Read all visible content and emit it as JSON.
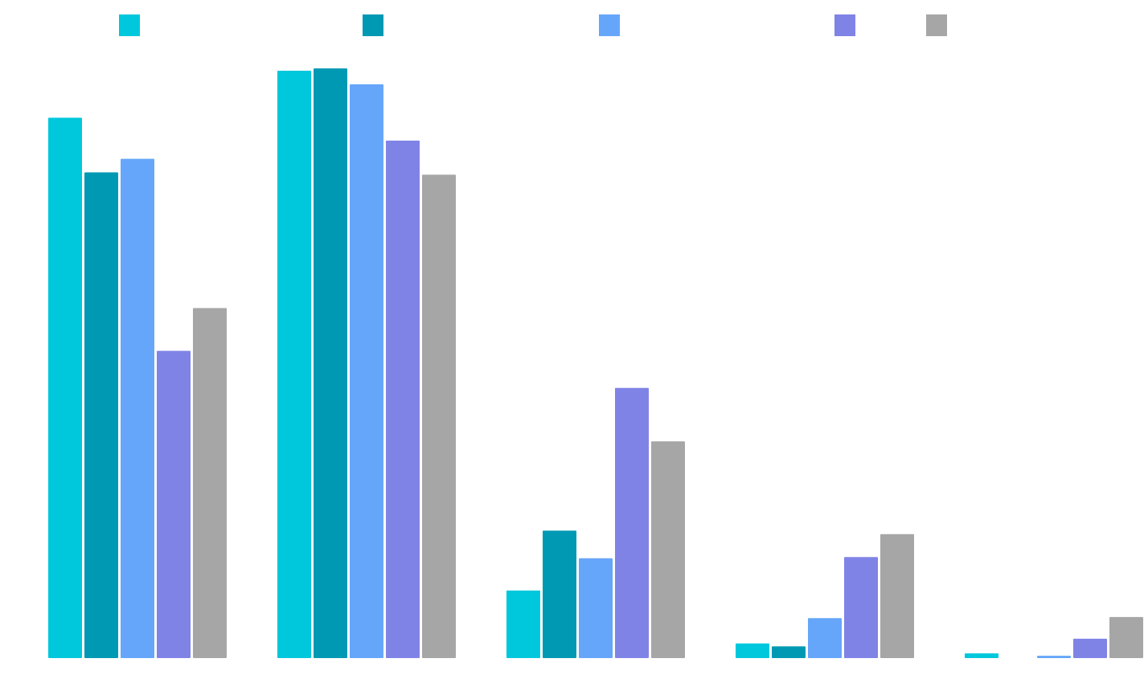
{
  "chart_data": {
    "type": "bar",
    "title": "",
    "xlabel": "",
    "ylabel": "",
    "ylim": [
      0,
      100
    ],
    "grid": false,
    "legend": {
      "placement": "top",
      "entries": [
        "",
        "",
        "",
        "",
        ""
      ]
    },
    "categories": [
      "",
      "",
      "",
      "",
      ""
    ],
    "series": [
      {
        "color": "#00c8dc",
        "values": [
          92,
          100,
          11.5,
          2.5,
          0.8
        ]
      },
      {
        "color": "#0099b4",
        "values": [
          82.7,
          100.4,
          21.7,
          2.0,
          0
        ]
      },
      {
        "color": "#66a6fa",
        "values": [
          85,
          97.7,
          17,
          6.8,
          0.4
        ]
      },
      {
        "color": "#8083e6",
        "values": [
          52.3,
          88.1,
          46,
          17.2,
          3.3
        ]
      },
      {
        "color": "#a6a6a6",
        "values": [
          59.6,
          82.3,
          36.9,
          21.1,
          7
        ]
      }
    ]
  }
}
